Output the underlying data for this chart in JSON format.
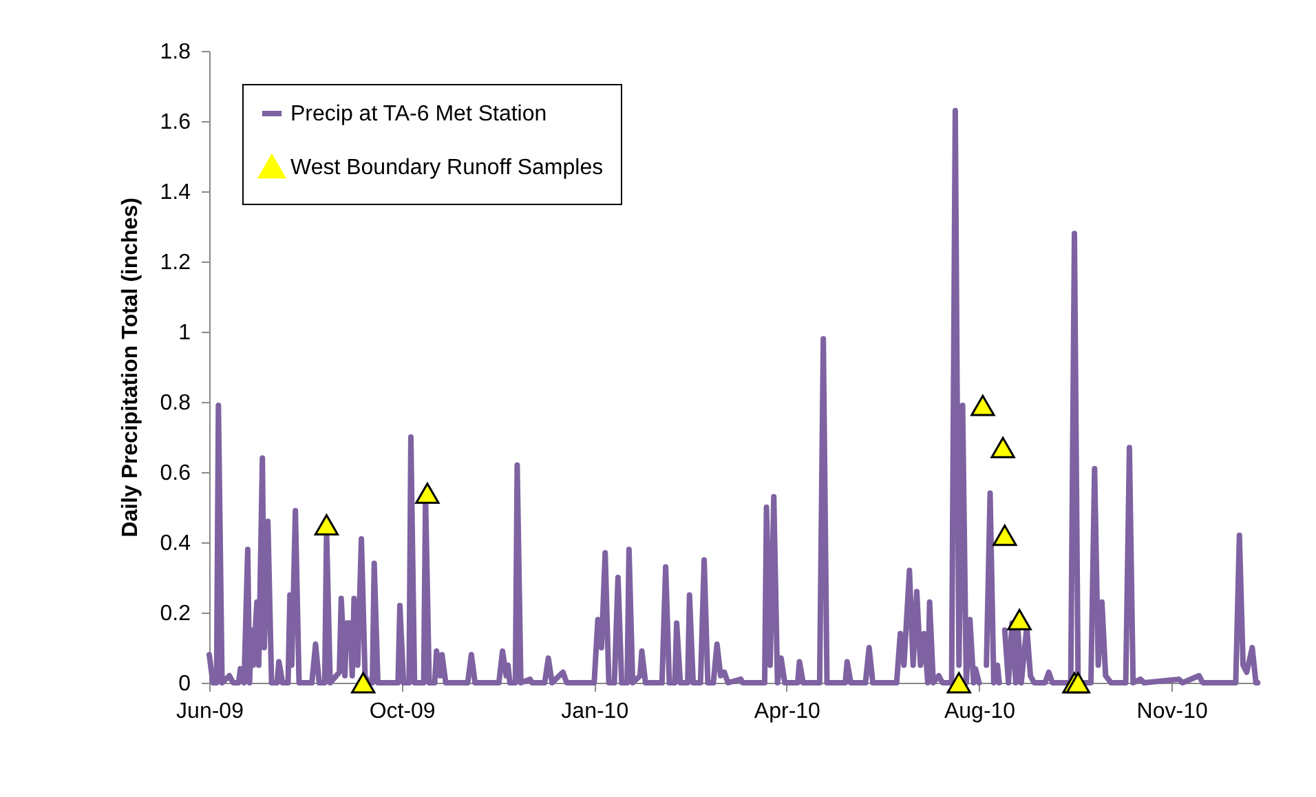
{
  "chart_data": {
    "type": "line",
    "ylabel": "Daily Precipitation Total (inches)",
    "xlim": [
      "2009-06-18",
      "2011-01-12"
    ],
    "xticks": [
      {
        "value": "2009-06-18",
        "label": "Jun-09"
      },
      {
        "value": "2009-10-01",
        "label": "Oct-09"
      },
      {
        "value": "2010-01-14",
        "label": "Jan-10"
      },
      {
        "value": "2010-04-29",
        "label": "Apr-10"
      },
      {
        "value": "2010-08-12",
        "label": "Aug-10"
      },
      {
        "value": "2010-11-25",
        "label": "Nov-10"
      }
    ],
    "ylim": [
      0,
      1.8
    ],
    "yticks": [
      0,
      0.2,
      0.4,
      0.6,
      0.8,
      1,
      1.2,
      1.4,
      1.6,
      1.8
    ],
    "grid": false,
    "legend": "top left",
    "series": [
      {
        "name": "Precip at TA-6 Met Station",
        "type": "line",
        "color": "#7e62a1",
        "marker": "none",
        "line_style": "solid",
        "x": [
          "2009-06-18",
          "2009-06-20",
          "2009-06-22",
          "2009-06-23",
          "2009-06-25",
          "2009-06-29",
          "2009-07-01",
          "2009-07-04",
          "2009-07-05",
          "2009-07-07",
          "2009-07-09",
          "2009-07-10",
          "2009-07-11",
          "2009-07-12",
          "2009-07-14",
          "2009-07-15",
          "2009-07-17",
          "2009-07-18",
          "2009-07-20",
          "2009-07-22",
          "2009-07-25",
          "2009-07-26",
          "2009-07-28",
          "2009-07-31",
          "2009-08-01",
          "2009-08-02",
          "2009-08-04",
          "2009-08-06",
          "2009-08-13",
          "2009-08-15",
          "2009-08-17",
          "2009-08-20",
          "2009-08-21",
          "2009-08-23",
          "2009-08-28",
          "2009-08-29",
          "2009-08-31",
          "2009-09-01",
          "2009-09-03",
          "2009-09-04",
          "2009-09-05",
          "2009-09-07",
          "2009-09-09",
          "2009-09-11",
          "2009-09-13",
          "2009-09-15",
          "2009-09-16",
          "2009-09-18",
          "2009-09-29",
          "2009-09-30",
          "2009-10-02",
          "2009-10-05",
          "2009-10-06",
          "2009-10-08",
          "2009-10-13",
          "2009-10-14",
          "2009-10-16",
          "2009-10-19",
          "2009-10-20",
          "2009-10-22",
          "2009-10-23",
          "2009-10-25",
          "2009-11-06",
          "2009-11-08",
          "2009-11-10",
          "2009-11-23",
          "2009-11-25",
          "2009-11-27",
          "2009-11-28",
          "2009-11-29",
          "2009-12-02",
          "2009-12-03",
          "2009-12-05",
          "2009-12-10",
          "2009-12-11",
          "2009-12-18",
          "2009-12-20",
          "2009-12-22",
          "2009-12-28",
          "2009-12-30",
          "2010-01-14",
          "2010-01-16",
          "2010-01-18",
          "2010-01-20",
          "2010-01-22",
          "2010-01-25",
          "2010-01-27",
          "2010-01-29",
          "2010-02-01",
          "2010-02-02",
          "2010-02-04",
          "2010-02-08",
          "2010-02-09",
          "2010-02-11",
          "2010-02-20",
          "2010-02-22",
          "2010-02-24",
          "2010-02-27",
          "2010-02-28",
          "2010-03-02",
          "2010-03-06",
          "2010-03-07",
          "2010-03-09",
          "2010-03-13",
          "2010-03-15",
          "2010-03-17",
          "2010-03-20",
          "2010-03-22",
          "2010-03-24",
          "2010-03-26",
          "2010-03-28",
          "2010-04-04",
          "2010-04-05",
          "2010-04-17",
          "2010-04-18",
          "2010-04-20",
          "2010-04-22",
          "2010-04-24",
          "2010-04-26",
          "2010-04-28",
          "2010-05-05",
          "2010-05-06",
          "2010-05-08",
          "2010-05-17",
          "2010-05-19",
          "2010-05-21",
          "2010-05-31",
          "2010-06-01",
          "2010-06-03",
          "2010-06-11",
          "2010-06-13",
          "2010-06-15",
          "2010-06-28",
          "2010-06-30",
          "2010-07-02",
          "2010-07-05",
          "2010-07-07",
          "2010-07-09",
          "2010-07-11",
          "2010-07-13",
          "2010-07-15",
          "2010-07-16",
          "2010-07-18",
          "2010-07-21",
          "2010-07-23",
          "2010-07-28",
          "2010-07-30",
          "2010-08-01",
          "2010-08-03",
          "2010-08-05",
          "2010-08-07",
          "2010-08-09",
          "2010-08-10",
          "2010-08-12",
          "2010-08-14",
          "2010-08-16",
          "2010-08-18",
          "2010-08-20",
          "2010-08-22",
          "2010-08-23",
          "2010-08-25",
          "2010-08-26",
          "2010-08-28",
          "2010-08-30",
          "2010-09-01",
          "2010-09-02",
          "2010-09-04",
          "2010-09-07",
          "2010-09-09",
          "2010-09-11",
          "2010-09-17",
          "2010-09-19",
          "2010-09-21",
          "2010-10-01",
          "2010-10-03",
          "2010-10-05",
          "2010-10-12",
          "2010-10-14",
          "2010-10-16",
          "2010-10-18",
          "2010-10-20",
          "2010-10-23",
          "2010-10-31",
          "2010-11-02",
          "2010-11-04",
          "2010-11-08",
          "2010-11-10",
          "2010-11-29",
          "2010-12-01",
          "2010-12-10",
          "2010-12-12",
          "2010-12-30",
          "2011-01-01",
          "2011-01-03",
          "2011-01-05",
          "2011-01-08",
          "2011-01-10",
          "2011-01-11"
        ],
        "values": [
          0.08,
          0,
          0,
          0.79,
          0,
          0.02,
          0,
          0,
          0.04,
          0,
          0.38,
          0,
          0.15,
          0.05,
          0.23,
          0.05,
          0.64,
          0.1,
          0.46,
          0,
          0,
          0.06,
          0,
          0,
          0.25,
          0.05,
          0.49,
          0,
          0,
          0.11,
          0,
          0,
          0.43,
          0,
          0.03,
          0.24,
          0.02,
          0.17,
          0.17,
          0.02,
          0.24,
          0.05,
          0.41,
          0.02,
          0,
          0,
          0.34,
          0,
          0,
          0.22,
          0,
          0,
          0.7,
          0,
          0,
          0.53,
          0,
          0,
          0.09,
          0.02,
          0.08,
          0,
          0,
          0.08,
          0,
          0,
          0.09,
          0.02,
          0.05,
          0,
          0,
          0.62,
          0,
          0.01,
          0,
          0,
          0.07,
          0,
          0.03,
          0,
          0,
          0.18,
          0.1,
          0.37,
          0,
          0,
          0.3,
          0,
          0,
          0.38,
          0,
          0.02,
          0.09,
          0,
          0,
          0.33,
          0,
          0,
          0.17,
          0,
          0,
          0.25,
          0,
          0,
          0.35,
          0,
          0,
          0.11,
          0.02,
          0.03,
          0,
          0.01,
          0,
          0,
          0.5,
          0.05,
          0.53,
          0,
          0.07,
          0,
          0,
          0.06,
          0,
          0,
          0.98,
          0,
          0,
          0.06,
          0,
          0,
          0.1,
          0,
          0,
          0.14,
          0.05,
          0.32,
          0.05,
          0.26,
          0.05,
          0.14,
          0,
          0.23,
          0,
          0.02,
          0,
          0,
          1.63,
          0.05,
          0.79,
          0,
          0.18,
          0,
          0.04,
          0,
          null,
          0.05,
          0.54,
          0,
          0.05,
          0,
          null,
          0.15,
          0,
          0.17,
          0,
          0.17,
          0,
          0.16,
          0.02,
          0,
          0,
          0.03,
          0,
          0,
          1.28,
          0,
          0,
          0.61,
          0.05,
          0.23,
          0.02,
          0,
          0,
          0.67,
          0,
          0.01,
          0,
          0.01,
          0,
          0.02,
          0,
          0,
          0.42,
          0.05,
          0.03,
          0.1,
          0,
          0
        ]
      },
      {
        "name": "West Boundary Runoff Samples",
        "type": "scatter",
        "color": "#ffff00",
        "marker": "triangle",
        "x": [
          "2009-08-21",
          "2009-09-10",
          "2009-10-15",
          "2010-08-01",
          "2010-08-14",
          "2010-08-25",
          "2010-08-26",
          "2010-09-03",
          "2010-10-03",
          "2010-10-05"
        ],
        "values": [
          0.45,
          0,
          0.54,
          0,
          0.79,
          0.67,
          0.42,
          0.18,
          0,
          0
        ]
      }
    ]
  }
}
